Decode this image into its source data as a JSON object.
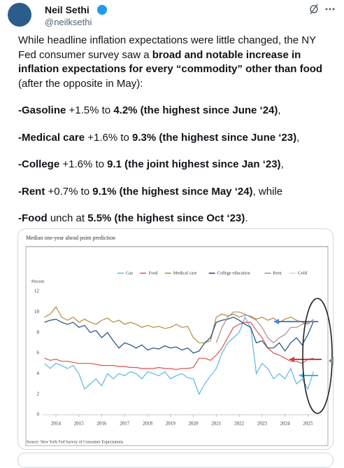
{
  "tweet": {
    "author": "Neil Sethi",
    "handle": "@neilksethi",
    "paragraphs": [
      [
        {
          "text": "While headline inflation expectations were little changed, the NY Fed consumer survey saw a ",
          "bold": false
        },
        {
          "text": "broad and notable increase in inflation expectations for every “commodity” other than food",
          "bold": true
        },
        {
          "text": " (after the opposite in May):",
          "bold": false
        }
      ],
      [
        {
          "text": "-Gasoline",
          "bold": true
        },
        {
          "text": " +1.5% to ",
          "bold": false
        },
        {
          "text": "4.2% (the highest since June ‘24)",
          "bold": true
        },
        {
          "text": ",",
          "bold": false
        }
      ],
      [
        {
          "text": "-Medical care",
          "bold": true
        },
        {
          "text": " +1.6% to ",
          "bold": false
        },
        {
          "text": "9.3% (the highest since June ‘23)",
          "bold": true
        },
        {
          "text": ",",
          "bold": false
        }
      ],
      [
        {
          "text": "-College",
          "bold": true
        },
        {
          "text": " +1.6% to ",
          "bold": false
        },
        {
          "text": "9.1 (the joint highest since Jan ‘23)",
          "bold": true
        },
        {
          "text": ",",
          "bold": false
        }
      ],
      [
        {
          "text": "-Rent",
          "bold": true
        },
        {
          "text": " +0.7% to ",
          "bold": false
        },
        {
          "text": "9.1% (the highest since May ‘24)",
          "bold": true
        },
        {
          "text": ", while",
          "bold": false
        }
      ],
      [
        {
          "text": "-Food",
          "bold": true
        },
        {
          "text": " unch at ",
          "bold": false
        },
        {
          "text": "5.5% (the highest since Oct ‘23)",
          "bold": true
        },
        {
          "text": ".",
          "bold": false
        }
      ]
    ]
  },
  "chart_data": {
    "type": "line",
    "title": "Median one-year ahead point prediction",
    "y_label": "Percent",
    "source": "Source: New York Fed Survey of Consumer Expectations",
    "xlim": [
      2013.45,
      2025.6
    ],
    "xticks": [
      2014,
      2015,
      2016,
      2017,
      2018,
      2019,
      2020,
      2021,
      2022,
      2023,
      2024,
      2025
    ],
    "ylim": [
      0,
      12
    ],
    "yticks": [
      0,
      2,
      4,
      6,
      8,
      10,
      12
    ],
    "grid": false,
    "x": [
      2013.5,
      2013.75,
      2014,
      2014.25,
      2014.5,
      2014.75,
      2015,
      2015.25,
      2015.5,
      2015.75,
      2016,
      2016.25,
      2016.5,
      2016.75,
      2017,
      2017.25,
      2017.5,
      2017.75,
      2018,
      2018.25,
      2018.5,
      2018.75,
      2019,
      2019.25,
      2019.5,
      2019.75,
      2020,
      2020.25,
      2020.5,
      2020.75,
      2021,
      2021.25,
      2021.5,
      2021.75,
      2022,
      2022.25,
      2022.5,
      2022.75,
      2023,
      2023.25,
      2023.5,
      2023.75,
      2024,
      2024.25,
      2024.5,
      2024.75,
      2025,
      2025.25
    ],
    "series": [
      {
        "name": "Gas",
        "color": "#5fb6e0",
        "values": [
          5,
          4.5,
          5,
          4.8,
          4.5,
          4.8,
          4,
          2.5,
          3,
          3.5,
          2.8,
          4,
          3.5,
          4,
          3.8,
          4.2,
          4,
          3.5,
          4.2,
          4,
          3.8,
          4.2,
          3.5,
          3.8,
          4,
          3.6,
          3.5,
          2,
          3,
          3.8,
          4.5,
          6,
          7,
          7.5,
          8,
          9.5,
          8.5,
          4,
          5,
          4.5,
          3.5,
          4,
          3.5,
          4.5,
          3,
          3.5,
          2.5,
          4.2
        ]
      },
      {
        "name": "Food",
        "color": "#d9534f",
        "values": [
          5.5,
          5.3,
          5.4,
          5.2,
          5.2,
          5.1,
          5,
          5,
          5,
          4.9,
          4.8,
          4.8,
          4.8,
          4.7,
          4.7,
          4.6,
          4.6,
          4.5,
          4.5,
          4.5,
          4.6,
          4.5,
          4.5,
          4.4,
          4.5,
          4.5,
          4.6,
          5.5,
          5.5,
          5.3,
          5.8,
          6.5,
          7.5,
          8.5,
          8.8,
          9,
          9,
          8.2,
          7.5,
          6.5,
          6,
          5.8,
          5.5,
          5.2,
          5.2,
          5,
          5.4,
          5.5
        ]
      },
      {
        "name": "Medical care",
        "color": "#b38b3f",
        "values": [
          9.5,
          9.8,
          10.5,
          9.5,
          9.2,
          9.5,
          9,
          9.3,
          9,
          8.8,
          9.2,
          9.4,
          9,
          9.2,
          8.8,
          9,
          8.8,
          8.5,
          8.7,
          8.5,
          8.6,
          8.4,
          8.5,
          8.8,
          8.5,
          8.6,
          7.5,
          7,
          7,
          7.2,
          9.5,
          9.8,
          9.6,
          9.8,
          9.5,
          9.7,
          9.6,
          9.3,
          9.5,
          9.2,
          9.4,
          9,
          9.3,
          9.5,
          9.2,
          9,
          8.8,
          9.3
        ]
      },
      {
        "name": "College education",
        "color": "#1f4e79",
        "values": [
          9,
          9.2,
          9.3,
          9,
          8.8,
          9,
          8.5,
          8.7,
          8,
          8.2,
          7.5,
          8,
          7.2,
          6.5,
          7,
          6.8,
          6.5,
          6.8,
          6.3,
          6.5,
          6.4,
          6.7,
          6.5,
          6.6,
          6.3,
          6.5,
          6,
          6.2,
          7,
          7.5,
          9,
          9.2,
          9.3,
          9.5,
          9.2,
          8.8,
          8.5,
          7,
          7.2,
          6.5,
          6.5,
          7,
          6.2,
          7,
          7.5,
          6.8,
          7.8,
          9.1
        ]
      },
      {
        "name": "Rent",
        "color": "#a98c8c",
        "values": [
          null,
          null,
          null,
          null,
          null,
          null,
          null,
          null,
          null,
          null,
          null,
          null,
          null,
          null,
          null,
          null,
          null,
          null,
          null,
          null,
          null,
          null,
          null,
          null,
          null,
          null,
          null,
          null,
          null,
          null,
          7,
          8.5,
          9.5,
          10,
          10,
          9.8,
          9.5,
          9.2,
          8.5,
          7.5,
          7,
          7.5,
          7.8,
          8.5,
          8.5,
          8.8,
          9,
          9.1
        ]
      },
      {
        "name": "Gold",
        "color": "#d6d6d6",
        "values": [
          null,
          null,
          null,
          null,
          null,
          null,
          null,
          null,
          null,
          null,
          null,
          null,
          null,
          null,
          null,
          null,
          null,
          null,
          null,
          null,
          null,
          null,
          null,
          null,
          null,
          null,
          null,
          null,
          null,
          null,
          null,
          null,
          null,
          null,
          null,
          null,
          null,
          null,
          null,
          null,
          null,
          null,
          null,
          null,
          null,
          null,
          null,
          null
        ]
      }
    ]
  }
}
